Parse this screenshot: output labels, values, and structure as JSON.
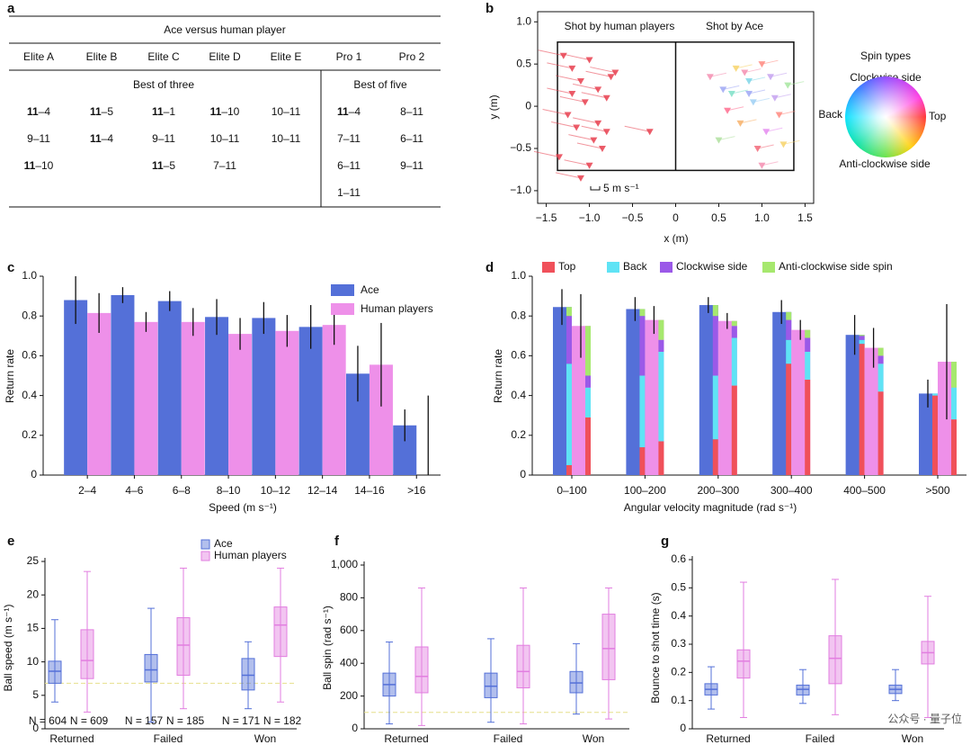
{
  "panel_labels": [
    "a",
    "b",
    "c",
    "d",
    "e",
    "f",
    "g"
  ],
  "table": {
    "title": "Ace versus human player",
    "columns": [
      "Elite A",
      "Elite B",
      "Elite C",
      "Elite D",
      "Elite E",
      "Pro 1",
      "Pro 2"
    ],
    "groups": [
      "Best of three",
      "Best of five"
    ],
    "scores": [
      [
        "11–4",
        "9–11",
        "11–10"
      ],
      [
        "11–5",
        "11–4"
      ],
      [
        "11–1",
        "9–11",
        "11–5"
      ],
      [
        "11–10",
        "10–11",
        "7–11"
      ],
      [
        "10–11",
        "10–11"
      ],
      [
        "11–4",
        "7–11",
        "6–11",
        "1–11"
      ],
      [
        "8–11",
        "6–11",
        "9–11"
      ]
    ]
  },
  "watermark": "公众号 · 量子位",
  "chart_data": [
    {
      "type": "scatter",
      "xlabel": "x (m)",
      "ylabel": "y (m)",
      "xlim": [
        -1.6,
        1.6
      ],
      "ylim": [
        -1.15,
        1.12
      ],
      "xticks": [
        {
          "value": -1.5,
          "label": "−1.5"
        },
        {
          "value": -1,
          "label": "−1.0"
        },
        {
          "value": -0.5,
          "label": "−0.5"
        },
        0,
        0.5,
        {
          "value": 1,
          "label": "1.0"
        },
        1.5
      ],
      "yticks": [
        {
          "value": -1,
          "label": "−1.0"
        },
        {
          "value": -0.5,
          "label": "−0.5"
        },
        0,
        0.5,
        {
          "value": 1,
          "label": "1.0"
        }
      ],
      "table_x": [
        -1.37,
        1.37
      ],
      "table_y": [
        -0.76,
        0.76
      ],
      "scale_label": "5 m s⁻¹",
      "spin_legend": {
        "title": "Spin types",
        "top_label": "Clockwise side",
        "left_label": "Back",
        "right_label": "Top",
        "bottom_label": "Anti-clockwise side"
      },
      "series": [
        {
          "name": "Shot by human players",
          "color": "#e8404f",
          "x": [
            -1.3,
            -1.2,
            -1.1,
            -1.0,
            -0.9,
            -0.8,
            -1.25,
            -1.15,
            -1.05,
            -0.95,
            -0.85,
            -0.75,
            -1.35,
            -1.0,
            -0.9,
            -1.2,
            -1.1,
            -0.8,
            -0.7,
            -0.3
          ],
          "y": [
            0.6,
            0.45,
            0.3,
            0.55,
            0.2,
            0.1,
            -0.1,
            -0.25,
            0.05,
            -0.4,
            -0.5,
            0.35,
            -0.6,
            -0.7,
            -0.2,
            0.15,
            -0.85,
            -0.3,
            0.4,
            -0.3
          ]
        },
        {
          "name": "Shot by Ace",
          "colors": [
            "#f48fb1",
            "#9fa8f5",
            "#f7d36b",
            "#7fd6e8",
            "#ff8a80",
            "#c5a3f0",
            "#a8e6a1",
            "#ff6f91",
            "#f7b26b",
            "#9fd0f5",
            "#e58cf0",
            "#ff8a80",
            "#b0e0a0",
            "#f48fb1",
            "#f26a7a",
            "#c5a3f0",
            "#7fe0c8",
            "#f7d36b",
            "#f48fb1",
            "#9fa8f5"
          ],
          "x": [
            0.4,
            0.55,
            0.7,
            0.85,
            1.0,
            1.15,
            1.3,
            0.6,
            0.75,
            0.9,
            1.05,
            1.2,
            0.5,
            0.8,
            0.95,
            1.1,
            0.65,
            1.25,
            1.0,
            0.85
          ],
          "y": [
            0.35,
            0.2,
            0.45,
            0.3,
            0.5,
            0.1,
            0.25,
            -0.05,
            -0.2,
            0.05,
            -0.3,
            -0.1,
            -0.4,
            0.4,
            -0.5,
            0.35,
            0.15,
            -0.45,
            -0.7,
            0.15
          ]
        }
      ]
    },
    {
      "type": "bar",
      "xlabel": "Speed (m s⁻¹)",
      "ylabel": "Return rate",
      "categories": [
        "2–4",
        "4–6",
        "6–8",
        "8–10",
        "10–12",
        "12–14",
        "14–16",
        ">16"
      ],
      "ylim": [
        0,
        1.0
      ],
      "yticks": [
        0,
        0.2,
        0.4,
        0.6,
        0.8,
        {
          "value": 1,
          "label": "1.0"
        }
      ],
      "legend": "upper right",
      "series": [
        {
          "name": "Ace",
          "color": "#5470d8",
          "values": [
            0.88,
            0.905,
            0.875,
            0.795,
            0.79,
            0.745,
            0.51,
            0.25
          ],
          "errors": [
            0.12,
            0.04,
            0.05,
            0.09,
            0.08,
            0.11,
            0.14,
            0.08
          ]
        },
        {
          "name": "Human players",
          "color": "#ee90e9",
          "values": [
            0.815,
            0.77,
            0.77,
            0.71,
            0.725,
            0.755,
            0.555,
            0
          ],
          "errors": [
            0.1,
            0.05,
            0.07,
            0.08,
            0.08,
            0.1,
            0.21,
            0.4
          ]
        }
      ]
    },
    {
      "type": "stacked_bar",
      "xlabel": "Angular velocity magnitude (rad s⁻¹)",
      "ylabel": "Return rate",
      "categories": [
        "0–100",
        "100–200",
        "200–300",
        "300–400",
        "400–500",
        ">500"
      ],
      "ylim": [
        0,
        1.0
      ],
      "yticks": [
        0,
        0.2,
        0.4,
        0.6,
        0.8,
        {
          "value": 1,
          "label": "1.0"
        }
      ],
      "legend": "top",
      "groups": [
        {
          "color": "#5470d8",
          "values": [
            0.845,
            0.835,
            0.855,
            0.82,
            0.705,
            0.41
          ],
          "errors": [
            0.09,
            0.06,
            0.04,
            0.06,
            0.1,
            0.07
          ]
        },
        {
          "color": "#ee90e9",
          "values": [
            0.75,
            0.78,
            0.775,
            0.73,
            0.64,
            0.57
          ],
          "errors": [
            0.16,
            0.07,
            0.04,
            0.05,
            0.1,
            0.29
          ]
        }
      ],
      "series": [
        {
          "name": "Top",
          "color": "#f0505a",
          "ace": [
            0.05,
            0.14,
            0.18,
            0.56,
            0.66,
            0.4
          ],
          "human": [
            0.29,
            0.17,
            0.45,
            0.48,
            0.42,
            0.28
          ]
        },
        {
          "name": "Back",
          "color": "#5fe3f5",
          "ace": [
            0.51,
            0.36,
            0.32,
            0.12,
            0.02,
            0.01
          ],
          "human": [
            0.15,
            0.45,
            0.24,
            0.14,
            0.14,
            0.16
          ]
        },
        {
          "name": "Clockwise side",
          "color": "#9b59e8",
          "ace": [
            0.24,
            0.3,
            0.3,
            0.1,
            0.02,
            0
          ],
          "human": [
            0.06,
            0.06,
            0.06,
            0.07,
            0.04,
            0
          ]
        },
        {
          "name": "Anti-clockwise side spin",
          "color": "#a6e86e",
          "ace": [
            0.045,
            0.035,
            0.055,
            0.04,
            0.005,
            0
          ],
          "human": [
            0.25,
            0.1,
            0.025,
            0.04,
            0.04,
            0.13
          ]
        }
      ]
    },
    {
      "type": "box",
      "ylabel": "Ball speed (m s⁻¹)",
      "categories": [
        "Returned",
        "Failed",
        "Won"
      ],
      "ylim": [
        0,
        25
      ],
      "yticks": [
        0,
        5,
        10,
        15,
        20,
        25
      ],
      "reference": 6.8,
      "legend": "upper center",
      "series": [
        {
          "name": "Ace",
          "color": "#5470d8",
          "boxes": [
            [
              4,
              6.8,
              8.6,
              10.1,
              16.3
            ],
            [
              1,
              7,
              8.8,
              11.1,
              18
            ],
            [
              3,
              5.8,
              8,
              10.5,
              13
            ]
          ],
          "n_labels": [
            "N = 604",
            "N = 157",
            "N = 171"
          ]
        },
        {
          "name": "Human players",
          "color": "#e27ee0",
          "boxes": [
            [
              2.5,
              7.5,
              10.2,
              14.8,
              23.5
            ],
            [
              3,
              8,
              12.5,
              16.6,
              24
            ],
            [
              4,
              10.8,
              15.5,
              18.2,
              24
            ]
          ],
          "n_labels": [
            "N = 609",
            "N = 185",
            "N = 182"
          ]
        }
      ]
    },
    {
      "type": "box",
      "ylabel": "Ball spin (rad s⁻¹)",
      "categories": [
        "Returned",
        "Failed",
        "Won"
      ],
      "ylim": [
        0,
        1000
      ],
      "yticks": [
        0,
        200,
        400,
        600,
        800,
        {
          "value": 1000,
          "label": "1,000"
        }
      ],
      "reference": 100,
      "series": [
        {
          "color": "#5470d8",
          "boxes": [
            [
              30,
              200,
              270,
              340,
              530
            ],
            [
              40,
              190,
              260,
              340,
              550
            ],
            [
              90,
              220,
              280,
              350,
              520
            ]
          ]
        },
        {
          "color": "#e27ee0",
          "boxes": [
            [
              20,
              220,
              320,
              500,
              860
            ],
            [
              30,
              250,
              350,
              510,
              860
            ],
            [
              60,
              300,
              490,
              700,
              860
            ]
          ]
        }
      ]
    },
    {
      "type": "box",
      "ylabel": "Bounce to shot time (s)",
      "categories": [
        "Returned",
        "Failed",
        "Won"
      ],
      "ylim": [
        0,
        0.6
      ],
      "yticks": [
        0,
        0.1,
        0.2,
        0.3,
        0.4,
        0.5,
        0.6
      ],
      "series": [
        {
          "color": "#5470d8",
          "boxes": [
            [
              0.07,
              0.12,
              0.14,
              0.16,
              0.22
            ],
            [
              0.09,
              0.12,
              0.14,
              0.155,
              0.21
            ],
            [
              0.1,
              0.125,
              0.14,
              0.155,
              0.21
            ]
          ]
        },
        {
          "color": "#e27ee0",
          "boxes": [
            [
              0.04,
              0.18,
              0.24,
              0.28,
              0.52
            ],
            [
              0.05,
              0.16,
              0.25,
              0.33,
              0.53
            ],
            [
              0.04,
              0.23,
              0.27,
              0.31,
              0.47
            ]
          ]
        }
      ]
    }
  ]
}
